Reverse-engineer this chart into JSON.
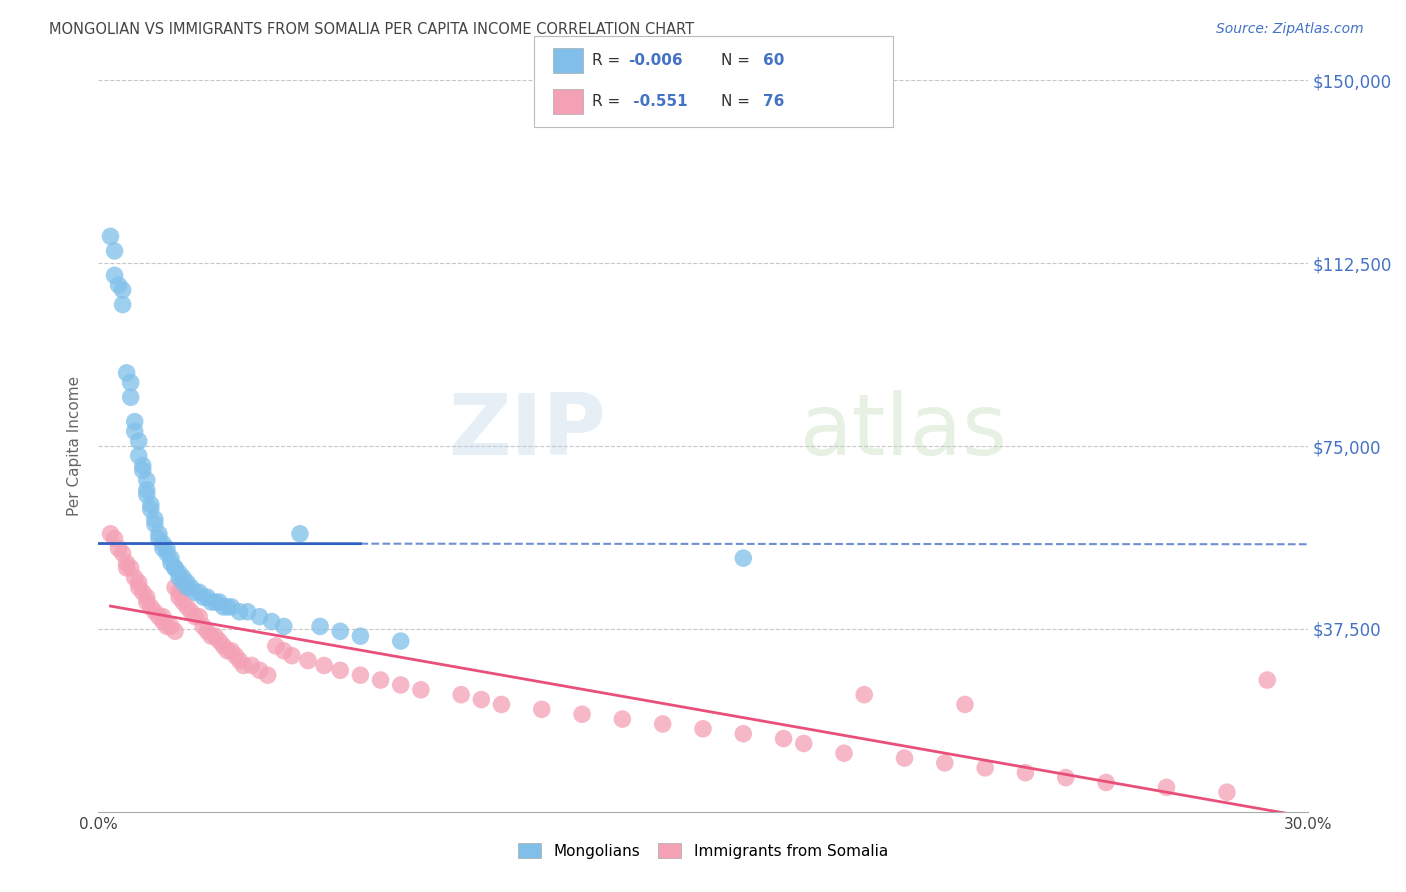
{
  "title": "MONGOLIAN VS IMMIGRANTS FROM SOMALIA PER CAPITA INCOME CORRELATION CHART",
  "source": "Source: ZipAtlas.com",
  "ylabel": "Per Capita Income",
  "xlim": [
    0,
    0.3
  ],
  "ylim": [
    0,
    150000
  ],
  "yticks": [
    0,
    37500,
    75000,
    112500,
    150000
  ],
  "ytick_labels": [
    "",
    "$37,500",
    "$75,000",
    "$112,500",
    "$150,000"
  ],
  "xticks": [
    0.0,
    0.05,
    0.1,
    0.15,
    0.2,
    0.25,
    0.3
  ],
  "legend_label_blue": "Mongolians",
  "legend_label_pink": "Immigrants from Somalia",
  "R_blue": "-0.006",
  "N_blue": "60",
  "R_pink": "-0.551",
  "N_pink": "76",
  "blue_color": "#7fbfea",
  "pink_color": "#f4a0b5",
  "blue_line_color": "#3060c0",
  "pink_line_color": "#e8507a",
  "background_color": "#ffffff",
  "grid_color": "#c8c8c8",
  "title_color": "#444444",
  "axis_label_color": "#666666",
  "ytick_color": "#4472c4",
  "watermark_zip": "ZIP",
  "watermark_atlas": "atlas",
  "blue_scatter_x": [
    0.003,
    0.004,
    0.004,
    0.005,
    0.006,
    0.006,
    0.007,
    0.008,
    0.008,
    0.009,
    0.009,
    0.01,
    0.01,
    0.011,
    0.011,
    0.012,
    0.012,
    0.012,
    0.013,
    0.013,
    0.014,
    0.014,
    0.015,
    0.015,
    0.016,
    0.016,
    0.017,
    0.017,
    0.018,
    0.018,
    0.019,
    0.019,
    0.02,
    0.02,
    0.021,
    0.021,
    0.022,
    0.022,
    0.023,
    0.024,
    0.025,
    0.026,
    0.027,
    0.028,
    0.029,
    0.03,
    0.031,
    0.032,
    0.033,
    0.035,
    0.037,
    0.04,
    0.043,
    0.046,
    0.05,
    0.055,
    0.06,
    0.065,
    0.075,
    0.16
  ],
  "blue_scatter_y": [
    118000,
    115000,
    110000,
    108000,
    107000,
    104000,
    90000,
    88000,
    85000,
    80000,
    78000,
    76000,
    73000,
    71000,
    70000,
    68000,
    66000,
    65000,
    63000,
    62000,
    60000,
    59000,
    57000,
    56000,
    55000,
    54000,
    54000,
    53000,
    52000,
    51000,
    50000,
    50000,
    49000,
    48000,
    48000,
    47000,
    47000,
    46000,
    46000,
    45000,
    45000,
    44000,
    44000,
    43000,
    43000,
    43000,
    42000,
    42000,
    42000,
    41000,
    41000,
    40000,
    39000,
    38000,
    57000,
    38000,
    37000,
    36000,
    35000,
    52000
  ],
  "pink_scatter_x": [
    0.003,
    0.004,
    0.005,
    0.006,
    0.007,
    0.007,
    0.008,
    0.009,
    0.01,
    0.01,
    0.011,
    0.012,
    0.012,
    0.013,
    0.014,
    0.015,
    0.016,
    0.016,
    0.017,
    0.018,
    0.019,
    0.019,
    0.02,
    0.02,
    0.021,
    0.022,
    0.023,
    0.024,
    0.025,
    0.026,
    0.027,
    0.028,
    0.029,
    0.03,
    0.031,
    0.032,
    0.033,
    0.034,
    0.035,
    0.036,
    0.038,
    0.04,
    0.042,
    0.044,
    0.046,
    0.048,
    0.052,
    0.056,
    0.06,
    0.065,
    0.07,
    0.075,
    0.08,
    0.09,
    0.095,
    0.1,
    0.11,
    0.12,
    0.13,
    0.14,
    0.15,
    0.16,
    0.17,
    0.175,
    0.185,
    0.19,
    0.2,
    0.21,
    0.215,
    0.22,
    0.23,
    0.24,
    0.25,
    0.265,
    0.28,
    0.29
  ],
  "pink_scatter_y": [
    57000,
    56000,
    54000,
    53000,
    51000,
    50000,
    50000,
    48000,
    47000,
    46000,
    45000,
    44000,
    43000,
    42000,
    41000,
    40000,
    40000,
    39000,
    38000,
    38000,
    37000,
    46000,
    45000,
    44000,
    43000,
    42000,
    41000,
    40000,
    40000,
    38000,
    37000,
    36000,
    36000,
    35000,
    34000,
    33000,
    33000,
    32000,
    31000,
    30000,
    30000,
    29000,
    28000,
    34000,
    33000,
    32000,
    31000,
    30000,
    29000,
    28000,
    27000,
    26000,
    25000,
    24000,
    23000,
    22000,
    21000,
    20000,
    19000,
    18000,
    17000,
    16000,
    15000,
    14000,
    12000,
    24000,
    11000,
    10000,
    22000,
    9000,
    8000,
    7000,
    6000,
    5000,
    4000,
    27000
  ]
}
